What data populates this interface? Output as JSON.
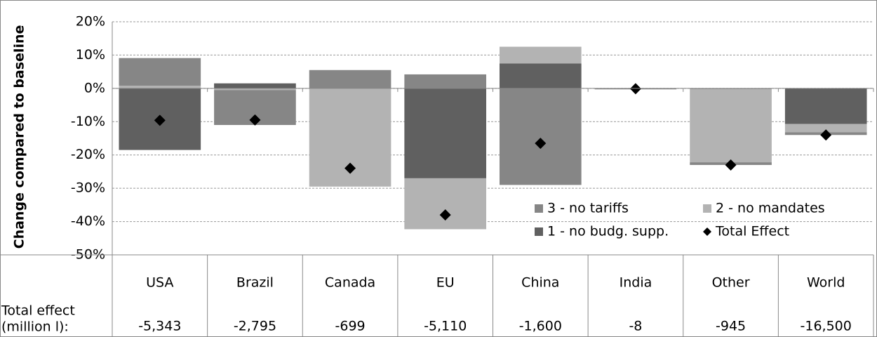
{
  "chart_data": {
    "type": "bar",
    "stacked": true,
    "y_label": "Change compared to baseline",
    "categories": [
      "USA",
      "Brazil",
      "Canada",
      "EU",
      "China",
      "India",
      "Other",
      "World"
    ],
    "series": [
      {
        "name": "1 - no budg. supp.",
        "color": "#606060",
        "values": [
          -18.5,
          1.5,
          0,
          -27,
          7.5,
          0,
          -0.2,
          -10.7
        ]
      },
      {
        "name": "2 - no mandates",
        "color": "#b3b3b3",
        "values": [
          0.8,
          -0.5,
          -29.5,
          -15.3,
          5,
          0,
          -22,
          -2.5
        ]
      },
      {
        "name": "3 - no tariffs",
        "color": "#868686",
        "values": [
          8.3,
          -10.5,
          5.5,
          4.2,
          -29,
          -0.3,
          -0.8,
          -0.8
        ]
      },
      {
        "name": "Total Effect",
        "type": "diamond",
        "color": "#000000",
        "values": [
          -9.6,
          -9.5,
          -24,
          -38,
          -16.5,
          -0.1,
          -23,
          -14
        ]
      }
    ],
    "legend_order": [
      2,
      1,
      0,
      3
    ],
    "ylim": [
      -50,
      20
    ],
    "yticks": [
      {
        "value": -50,
        "label": "-50%"
      },
      {
        "value": -40,
        "label": "-40%"
      },
      {
        "value": -30,
        "label": "-30%"
      },
      {
        "value": -20,
        "label": "-20%"
      },
      {
        "value": -10,
        "label": "-10%"
      },
      {
        "value": 0,
        "label": "0%"
      },
      {
        "value": 10,
        "label": "10%"
      },
      {
        "value": 20,
        "label": "20%"
      }
    ],
    "grid": true,
    "table": {
      "row_label": [
        "Total effect",
        "(million l):"
      ],
      "values": [
        -5343,
        -2795,
        -699,
        -5110,
        -1600,
        -8,
        -945,
        -16500
      ],
      "value_labels": [
        "-5,343",
        "-2,795",
        "-699",
        "-5,110",
        "-1,600",
        "-8",
        "-945",
        "-16,500"
      ]
    }
  }
}
